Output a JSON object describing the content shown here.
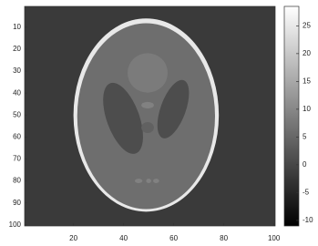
{
  "chart_data": {
    "type": "image",
    "colormap": "gray",
    "xlim": [
      0.5,
      100.5
    ],
    "ylim": [
      0.5,
      100.5
    ],
    "y_reversed": true,
    "xticks": [
      20,
      40,
      60,
      80,
      100
    ],
    "yticks": [
      10,
      20,
      30,
      40,
      50,
      60,
      70,
      80,
      90,
      100
    ],
    "background": -2,
    "ellipses": [
      {
        "cx": 49,
        "cy": 50,
        "rx": 29,
        "ry": 44,
        "angle": 0,
        "value": 25
      },
      {
        "cx": 49,
        "cy": 50.5,
        "rx": 27.5,
        "ry": 42.3,
        "angle": 0,
        "value": 6
      },
      {
        "cx": 49.6,
        "cy": 30.8,
        "rx": 8,
        "ry": 9,
        "angle": 0,
        "value": 8
      },
      {
        "cx": 39.8,
        "cy": 51.5,
        "rx": 6.5,
        "ry": 17,
        "angle": -20,
        "value": 1
      },
      {
        "cx": 59.8,
        "cy": 47.3,
        "rx": 5,
        "ry": 14,
        "angle": 20,
        "value": 1
      },
      {
        "cx": 49.6,
        "cy": 55.7,
        "rx": 2.5,
        "ry": 2.5,
        "angle": 0,
        "value": 4
      },
      {
        "cx": 49.6,
        "cy": 45.5,
        "rx": 2.5,
        "ry": 1.5,
        "angle": 0,
        "value": 9
      },
      {
        "cx": 46,
        "cy": 80,
        "rx": 1.5,
        "ry": 1,
        "angle": 0,
        "value": 9
      },
      {
        "cx": 50,
        "cy": 80,
        "rx": 1,
        "ry": 1,
        "angle": 0,
        "value": 9
      },
      {
        "cx": 53,
        "cy": 80,
        "rx": 1.2,
        "ry": 1,
        "angle": 0,
        "value": 9
      }
    ],
    "clim": [
      -11,
      28.5
    ],
    "cticks": [
      -10,
      -5,
      0,
      5,
      10,
      15,
      20,
      25
    ]
  }
}
